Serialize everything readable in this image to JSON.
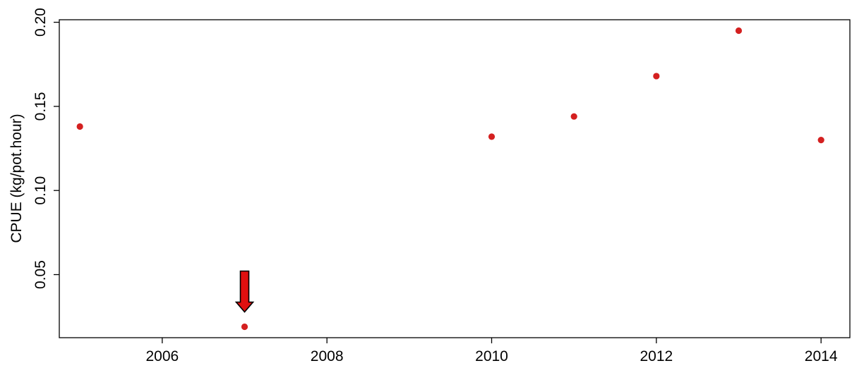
{
  "chart_data": {
    "type": "scatter",
    "title": "",
    "xlabel": "",
    "ylabel": "CPUE (kg/pot.hour)",
    "xlim": [
      2004.75,
      2014.35
    ],
    "ylim": [
      0.0125,
      0.2015
    ],
    "x_ticks": [
      2006,
      2008,
      2010,
      2012,
      2014
    ],
    "x_tick_labels": [
      "2006",
      "2008",
      "2010",
      "2012",
      "2014"
    ],
    "y_ticks": [
      0.05,
      0.1,
      0.15,
      0.2
    ],
    "y_tick_labels": [
      "0.05",
      "0.10",
      "0.15",
      "0.20"
    ],
    "grid": false,
    "series": [
      {
        "color": "#d42020",
        "points": [
          {
            "x": 2005,
            "y": 0.138
          },
          {
            "x": 2007,
            "y": 0.019
          },
          {
            "x": 2010,
            "y": 0.132
          },
          {
            "x": 2011,
            "y": 0.144
          },
          {
            "x": 2012,
            "y": 0.168
          },
          {
            "x": 2013,
            "y": 0.195
          },
          {
            "x": 2014,
            "y": 0.13
          }
        ]
      }
    ],
    "annotations": [
      {
        "type": "arrow",
        "direction": "down",
        "target": {
          "x": 2007,
          "y": 0.019
        },
        "color": "#e01010"
      }
    ]
  }
}
